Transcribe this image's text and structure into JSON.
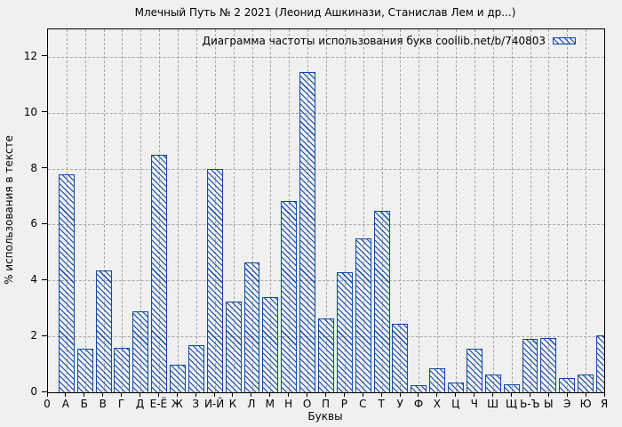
{
  "title": "Млечный Путь № 2 2021 (Леонид Ашкинази, Станислав Лем и др...)",
  "legend_label": "Диаграмма частоты использования букв coollib.net/b/740803",
  "x_axis_title": "Буквы",
  "y_axis_title": "% использования в тексте",
  "colors": {
    "background": "#f0f0f0",
    "plot_background": "#f0f0f0",
    "bar": "#0d47a8",
    "grid": "#a8a8a8",
    "border": "#000000",
    "text": "#000000"
  },
  "chart_data": {
    "type": "bar",
    "title": "Млечный Путь № 2 2021 (Леонид Ашкинази, Станислав Лем и др...)",
    "xlabel": "Буквы",
    "ylabel": "% использования в тексте",
    "legend": "Диаграмма частоты использования букв coollib.net/b/740803",
    "legend_position": "top-right",
    "grid": true,
    "hatch": "diagonal-backslash",
    "origin_tick_label": "0",
    "categories": [
      "А",
      "Б",
      "В",
      "Г",
      "Д",
      "Е-Ё",
      "Ж",
      "З",
      "И-Й",
      "К",
      "Л",
      "М",
      "Н",
      "О",
      "П",
      "Р",
      "С",
      "Т",
      "У",
      "Ф",
      "Х",
      "Ц",
      "Ч",
      "Ш",
      "Щ",
      "Ь-Ъ",
      "Ы",
      "Э",
      "Ю",
      "Я"
    ],
    "values": [
      7.8,
      1.55,
      4.35,
      1.6,
      2.9,
      8.5,
      1.0,
      1.7,
      8.0,
      3.25,
      4.65,
      3.4,
      6.85,
      11.45,
      2.65,
      4.3,
      5.5,
      6.5,
      2.45,
      0.25,
      0.85,
      0.35,
      1.55,
      0.65,
      0.3,
      1.9,
      1.95,
      0.5,
      0.65,
      2.05
    ],
    "y_ticks": [
      0,
      2,
      4,
      6,
      8,
      10,
      12
    ],
    "ylim": [
      0,
      12.98
    ],
    "xlim": [
      0,
      30
    ]
  }
}
